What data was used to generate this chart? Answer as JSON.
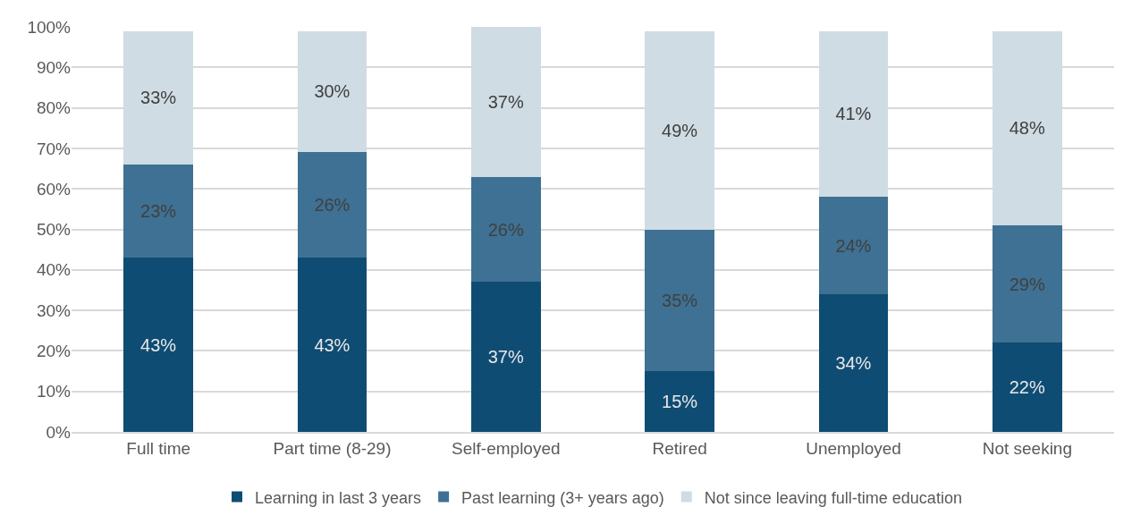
{
  "chart_data": {
    "type": "bar",
    "stacked": true,
    "grid": "y",
    "legend": "bottom",
    "categories": [
      "Full time",
      "Part time (8-29)",
      "Self-employed",
      "Retired",
      "Unemployed",
      "Not seeking"
    ],
    "series": [
      {
        "name": "Learning in last 3 years",
        "color": "#0f4c73",
        "values": [
          43,
          43,
          37,
          15,
          34,
          22
        ],
        "value_labels": [
          "43%",
          "43%",
          "37%",
          "15%",
          "34%",
          "22%"
        ]
      },
      {
        "name": "Past learning (3+ years ago)",
        "color": "#3e7193",
        "values": [
          23,
          26,
          26,
          35,
          24,
          29
        ],
        "value_labels": [
          "23%",
          "26%",
          "26%",
          "35%",
          "24%",
          "29%"
        ]
      },
      {
        "name": "Not since leaving full-time education",
        "color": "#cfdce4",
        "values": [
          33,
          30,
          37,
          49,
          41,
          48
        ],
        "value_labels": [
          "33%",
          "30%",
          "37%",
          "49%",
          "41%",
          "48%"
        ]
      }
    ],
    "ylim": [
      0,
      100
    ],
    "yticks": [
      {
        "value": 0,
        "label": "0%"
      },
      {
        "value": 10,
        "label": "10%"
      },
      {
        "value": 20,
        "label": "20%"
      },
      {
        "value": 30,
        "label": "30%"
      },
      {
        "value": 40,
        "label": "40%"
      },
      {
        "value": 50,
        "label": "50%"
      },
      {
        "value": 60,
        "label": "60%"
      },
      {
        "value": 70,
        "label": "70%"
      },
      {
        "value": 80,
        "label": "80%"
      },
      {
        "value": 90,
        "label": "90%"
      },
      {
        "value": 100,
        "label": "100%"
      }
    ]
  }
}
